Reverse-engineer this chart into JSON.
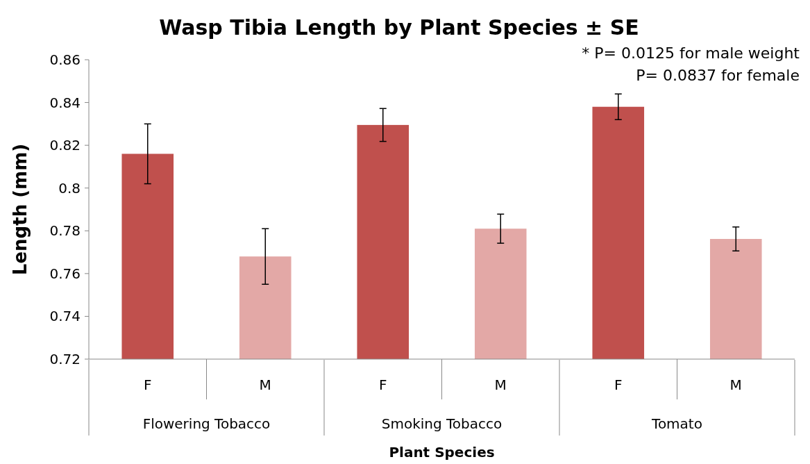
{
  "chart_data": {
    "type": "bar",
    "title": "Wasp Tibia Length by Plant Species ± SE",
    "xlabel": "Plant Species",
    "ylabel": "Length (mm)",
    "categories": [
      "Flowering Tobacco",
      "Smoking Tobacco",
      "Tomato"
    ],
    "series": [
      {
        "name": "F",
        "color": "#c0504d",
        "values": [
          0.816,
          0.8295,
          0.838
        ],
        "errors": [
          0.014,
          0.0077,
          0.006
        ]
      },
      {
        "name": "M",
        "color": "#e3a8a6",
        "values": [
          0.768,
          0.781,
          0.7762
        ],
        "errors": [
          0.013,
          0.0068,
          0.0056
        ]
      }
    ],
    "ylim": [
      0.72,
      0.86
    ],
    "yticks": [
      0.72,
      0.74,
      0.76,
      0.78,
      0.8,
      0.82,
      0.84,
      0.86
    ],
    "annotations": [
      "* P= 0.0125 for male weight",
      "P= 0.0837 for female"
    ]
  }
}
